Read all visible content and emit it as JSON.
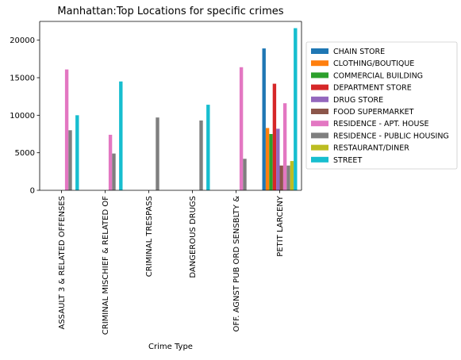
{
  "chart_data": {
    "type": "bar",
    "title": "Manhattan:Top Locations for specific crimes",
    "xlabel": "Crime Type",
    "ylabel": "",
    "ylim": [
      0,
      22500
    ],
    "yticks": [
      0,
      5000,
      10000,
      15000,
      20000
    ],
    "ytick_labels": [
      "0",
      "5000",
      "10000",
      "15000",
      "20000"
    ],
    "grid": false,
    "legend_position": "right",
    "categories": [
      "ASSAULT 3 & RELATED OFFENSES",
      "CRIMINAL MISCHIEF & RELATED OF",
      "CRIMINAL TRESPASS",
      "DANGEROUS DRUGS",
      "OFF. AGNST PUB ORD SENSBLTY &",
      "PETIT LARCENY"
    ],
    "series": [
      {
        "name": "CHAIN STORE",
        "color": "#1f77b4",
        "values": [
          0,
          0,
          0,
          0,
          0,
          18900
        ]
      },
      {
        "name": "CLOTHING/BOUTIQUE",
        "color": "#ff7f0e",
        "values": [
          0,
          0,
          0,
          0,
          0,
          8300
        ]
      },
      {
        "name": "COMMERCIAL BUILDING",
        "color": "#2ca02c",
        "values": [
          0,
          0,
          0,
          0,
          0,
          7500
        ]
      },
      {
        "name": "DEPARTMENT STORE",
        "color": "#d62728",
        "values": [
          0,
          0,
          0,
          0,
          0,
          14200
        ]
      },
      {
        "name": "DRUG STORE",
        "color": "#9467bd",
        "values": [
          0,
          0,
          0,
          0,
          0,
          8200
        ]
      },
      {
        "name": "FOOD SUPERMARKET",
        "color": "#8c564b",
        "values": [
          0,
          0,
          0,
          0,
          0,
          3300
        ]
      },
      {
        "name": "RESIDENCE - APT. HOUSE",
        "color": "#e377c2",
        "values": [
          16100,
          7400,
          0,
          0,
          16400,
          11600
        ]
      },
      {
        "name": "RESIDENCE - PUBLIC HOUSING",
        "color": "#7f7f7f",
        "values": [
          8000,
          4900,
          9700,
          9300,
          4200,
          3300
        ]
      },
      {
        "name": "RESTAURANT/DINER",
        "color": "#bcbd22",
        "values": [
          0,
          0,
          0,
          0,
          0,
          3900
        ]
      },
      {
        "name": "STREET",
        "color": "#17becf",
        "values": [
          10000,
          14500,
          0,
          11400,
          0,
          21600
        ]
      }
    ]
  }
}
